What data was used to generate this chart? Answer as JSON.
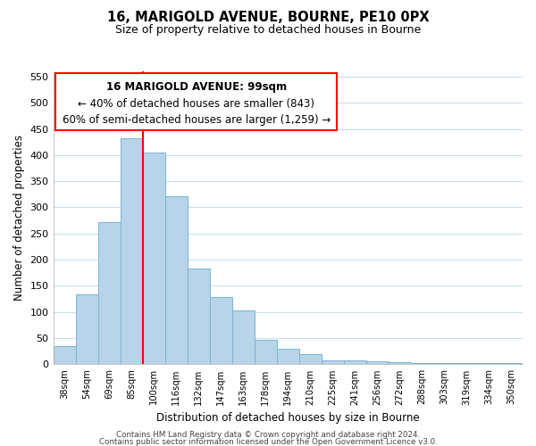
{
  "title": "16, MARIGOLD AVENUE, BOURNE, PE10 0PX",
  "subtitle": "Size of property relative to detached houses in Bourne",
  "xlabel": "Distribution of detached houses by size in Bourne",
  "ylabel": "Number of detached properties",
  "categories": [
    "38sqm",
    "54sqm",
    "69sqm",
    "85sqm",
    "100sqm",
    "116sqm",
    "132sqm",
    "147sqm",
    "163sqm",
    "178sqm",
    "194sqm",
    "210sqm",
    "225sqm",
    "241sqm",
    "256sqm",
    "272sqm",
    "288sqm",
    "303sqm",
    "319sqm",
    "334sqm",
    "350sqm"
  ],
  "values": [
    35,
    133,
    272,
    432,
    405,
    322,
    184,
    128,
    103,
    46,
    30,
    20,
    8,
    8,
    5,
    4,
    3,
    2,
    2,
    2,
    3
  ],
  "bar_color": "#b8d4e8",
  "bar_edge_color": "#7ab4d4",
  "ylim": [
    0,
    560
  ],
  "yticks": [
    0,
    50,
    100,
    150,
    200,
    250,
    300,
    350,
    400,
    450,
    500,
    550
  ],
  "annotation_box_text_line1": "16 MARIGOLD AVENUE: 99sqm",
  "annotation_box_text_line2": "← 40% of detached houses are smaller (843)",
  "annotation_box_text_line3": "60% of semi-detached houses are larger (1,259) →",
  "footer_line1": "Contains HM Land Registry data © Crown copyright and database right 2024.",
  "footer_line2": "Contains public sector information licensed under the Open Government Licence v3.0.",
  "background_color": "#ffffff",
  "grid_color": "#ccdde8"
}
